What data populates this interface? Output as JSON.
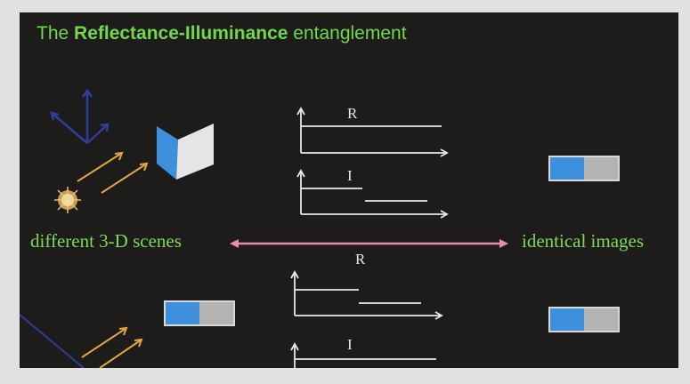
{
  "slide": {
    "title_prefix": "The ",
    "title_bold": "Reflectance-Illuminance",
    "title_suffix": " entanglement",
    "left_label": "different 3-D scenes",
    "right_label": "identical images",
    "top_graph_r_label": "R",
    "top_graph_i_label": "I",
    "bottom_graph_r_label": "R",
    "bottom_graph_i_label": "I"
  },
  "colors": {
    "accent_green": "#6fd94b",
    "arrow_pink": "#e88bb0",
    "swatch_blue": "#3d8edb",
    "swatch_gray": "#b3b3b3",
    "sun_ray": "#e0a93a",
    "axes_blue": "#2c3f9e"
  }
}
